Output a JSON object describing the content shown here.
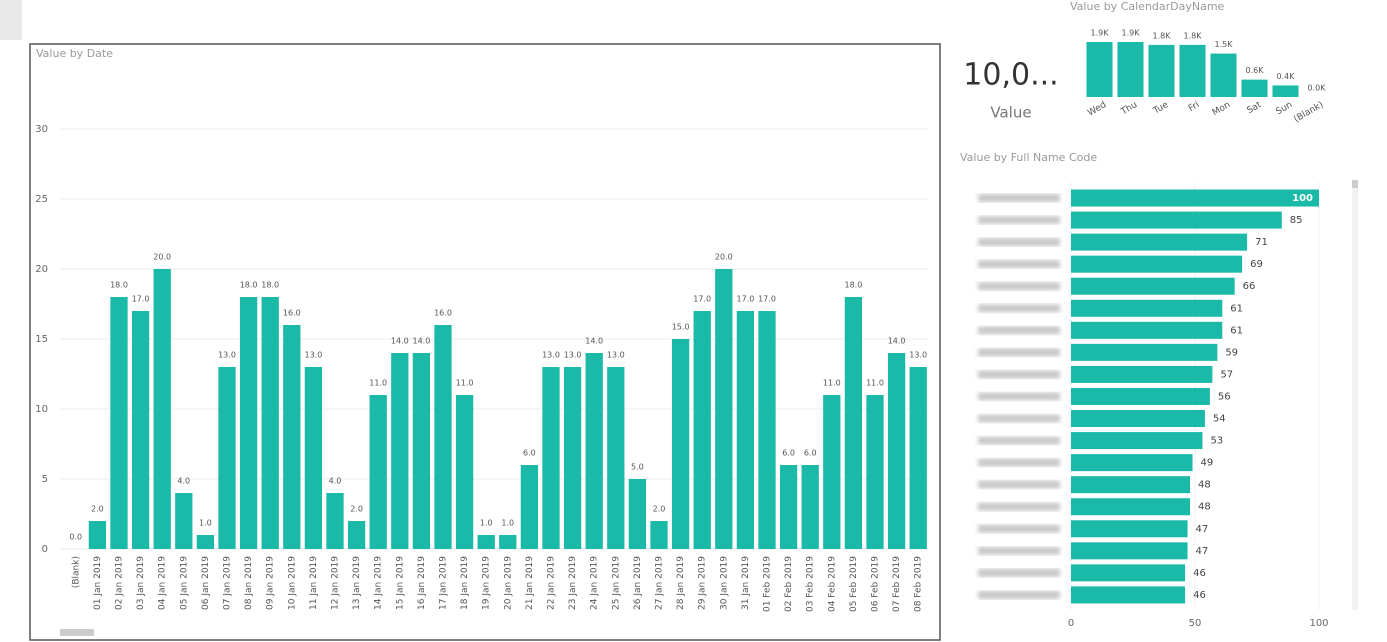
{
  "card": {
    "value": "10,0...",
    "label": "Value"
  },
  "chart_data": [
    {
      "type": "bar",
      "title": "Value by Date",
      "color": "#1ab9a8",
      "grid": true,
      "categories": [
        "(Blank)",
        "01 Jan 2019",
        "02 Jan 2019",
        "03 Jan 2019",
        "04 Jan 2019",
        "05 Jan 2019",
        "06 Jan 2019",
        "07 Jan 2019",
        "08 Jan 2019",
        "09 Jan 2019",
        "10 Jan 2019",
        "11 Jan 2019",
        "12 Jan 2019",
        "13 Jan 2019",
        "14 Jan 2019",
        "15 Jan 2019",
        "16 Jan 2019",
        "17 Jan 2019",
        "18 Jan 2019",
        "19 Jan 2019",
        "20 Jan 2019",
        "21 Jan 2019",
        "22 Jan 2019",
        "23 Jan 2019",
        "24 Jan 2019",
        "25 Jan 2019",
        "26 Jan 2019",
        "27 Jan 2019",
        "28 Jan 2019",
        "29 Jan 2019",
        "30 Jan 2019",
        "31 Jan 2019",
        "01 Feb 2019",
        "02 Feb 2019",
        "03 Feb 2019",
        "04 Feb 2019",
        "05 Feb 2019",
        "06 Feb 2019",
        "07 Feb 2019",
        "08 Feb 2019"
      ],
      "values": [
        0,
        2,
        18,
        17,
        20,
        4,
        1,
        13,
        18,
        18,
        16,
        13,
        4,
        2,
        11,
        14,
        14,
        16,
        11,
        1,
        1,
        6,
        13,
        13,
        14,
        13,
        5,
        2,
        15,
        17,
        20,
        17,
        17,
        6,
        6,
        11,
        18,
        11,
        14,
        13
      ],
      "value_labels": [
        "0.0",
        "2.0",
        "18.0",
        "17.0",
        "20.0",
        "4.0",
        "1.0",
        "13.0",
        "18.0",
        "18.0",
        "16.0",
        "13.0",
        "4.0",
        "2.0",
        "11.0",
        "14.0",
        "14.0",
        "16.0",
        "11.0",
        "1.0",
        "1.0",
        "6.0",
        "13.0",
        "13.0",
        "14.0",
        "13.0",
        "5.0",
        "2.0",
        "15.0",
        "17.0",
        "20.0",
        "17.0",
        "17.0",
        "6.0",
        "6.0",
        "11.0",
        "18.0",
        "11.0",
        "14.0",
        "13.0"
      ],
      "ylim": [
        0,
        33
      ],
      "yticks": [
        0,
        5,
        10,
        15,
        20,
        25,
        30
      ]
    },
    {
      "type": "bar",
      "title": "Value by CalendarDayName",
      "color": "#1ab9a8",
      "categories": [
        "Wed",
        "Thu",
        "Tue",
        "Fri",
        "Mon",
        "Sat",
        "Sun",
        "(Blank)"
      ],
      "values": [
        1900,
        1900,
        1800,
        1800,
        1500,
        600,
        400,
        0
      ],
      "value_labels": [
        "1.9K",
        "1.9K",
        "1.8K",
        "1.8K",
        "1.5K",
        "0.6K",
        "0.4K",
        "0.0K"
      ]
    },
    {
      "type": "hbar",
      "title": "Value by Full Name Code",
      "color": "#1ab9a8",
      "grid": true,
      "categories": [
        null,
        null,
        null,
        null,
        null,
        null,
        null,
        null,
        null,
        null,
        null,
        null,
        null,
        null,
        null,
        null,
        null,
        null,
        null
      ],
      "values": [
        100,
        85,
        71,
        69,
        66,
        61,
        61,
        59,
        57,
        56,
        54,
        53,
        49,
        48,
        48,
        47,
        47,
        46,
        46
      ],
      "xlim": [
        0,
        100
      ],
      "xticks": [
        0,
        50,
        100
      ]
    }
  ]
}
